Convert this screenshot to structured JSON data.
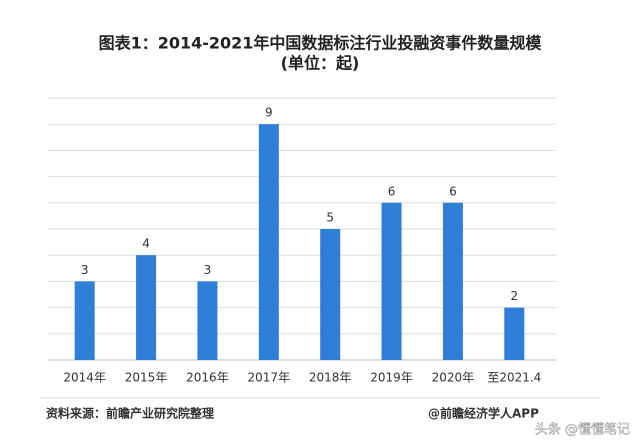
{
  "chart_data": {
    "type": "bar",
    "title": "图表1：2014-2021年中国数据标注行业投融资事件数量规模",
    "subtitle": "(单位：起)",
    "categories": [
      "2014年",
      "2015年",
      "2016年",
      "2017年",
      "2018年",
      "2019年",
      "2020年",
      "至2021.4"
    ],
    "values": [
      3,
      4,
      3,
      9,
      5,
      6,
      6,
      2
    ],
    "color": "#2f7ed8",
    "ylim": [
      0,
      10
    ],
    "yticks": [
      0,
      1,
      2,
      3,
      4,
      5,
      6,
      7,
      8,
      9,
      10
    ],
    "grid": true,
    "source": "资料来源：前瞻产业研究院整理",
    "credit": "@前瞻经济学人APP",
    "watermark": "头条 @懂懂笔记"
  }
}
